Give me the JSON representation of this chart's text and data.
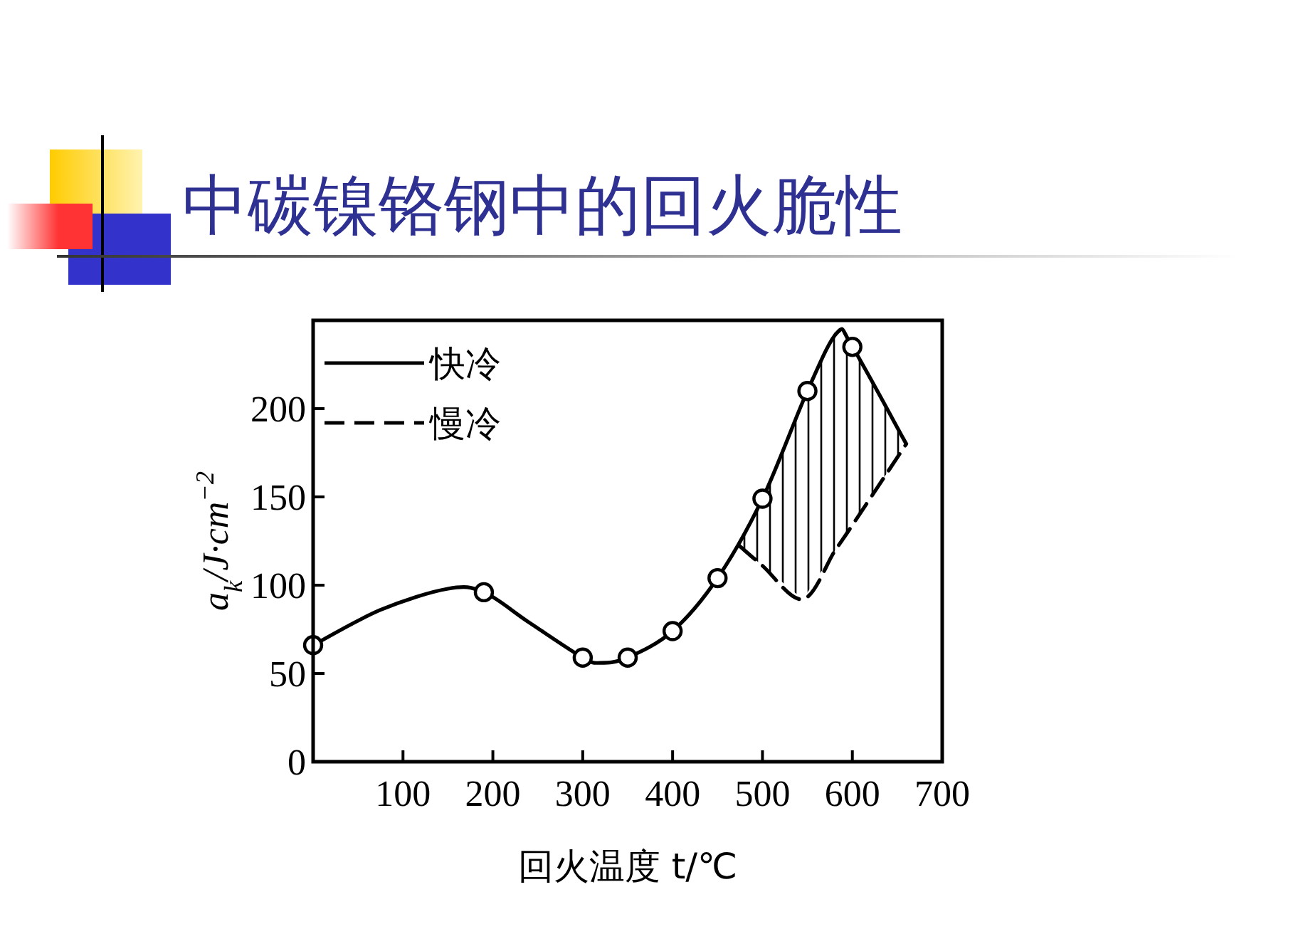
{
  "chart_data": {
    "type": "line",
    "title": "中碳镍铬钢中的回火脆性",
    "xlabel": "回火温度 t/℃",
    "ylabel": "a$_{k}$/J·cm$^{−2}$",
    "xlim": [
      0,
      700
    ],
    "ylim": [
      0,
      250
    ],
    "xticks": [
      100,
      200,
      300,
      400,
      500,
      600,
      700
    ],
    "yticks": [
      0,
      50,
      100,
      150,
      200
    ],
    "legend": "top left",
    "grid": false,
    "series": [
      {
        "name": "快冷",
        "type": "line",
        "color": "#000000",
        "marker": "none",
        "line_style": "solid",
        "x": [
          0,
          75,
          150,
          190,
          240,
          300,
          320,
          350,
          400,
          450,
          500,
          550,
          583,
          600,
          660
        ],
        "values": [
          66,
          86,
          98,
          96,
          79,
          59,
          56,
          59,
          74,
          104,
          149,
          210,
          243,
          235,
          180
        ]
      },
      {
        "type": "scatter",
        "color": "#000000",
        "marker": "circle",
        "x": [
          0,
          190,
          300,
          350,
          400,
          450,
          500,
          550,
          600
        ],
        "values": [
          66,
          96,
          59,
          59,
          74,
          104,
          149,
          210,
          235
        ]
      },
      {
        "name": "慢冷",
        "type": "line",
        "color": "#000000",
        "marker": "none",
        "line_style": "dashed",
        "x": [
          475,
          500,
          545,
          580,
          600,
          660
        ],
        "values": [
          122,
          111,
          92,
          119,
          134,
          180
        ],
        "lower": [
          122,
          111,
          92,
          119,
          134,
          180
        ],
        "upper": [
          122,
          149,
          205,
          243,
          235,
          180
        ]
      }
    ]
  }
}
